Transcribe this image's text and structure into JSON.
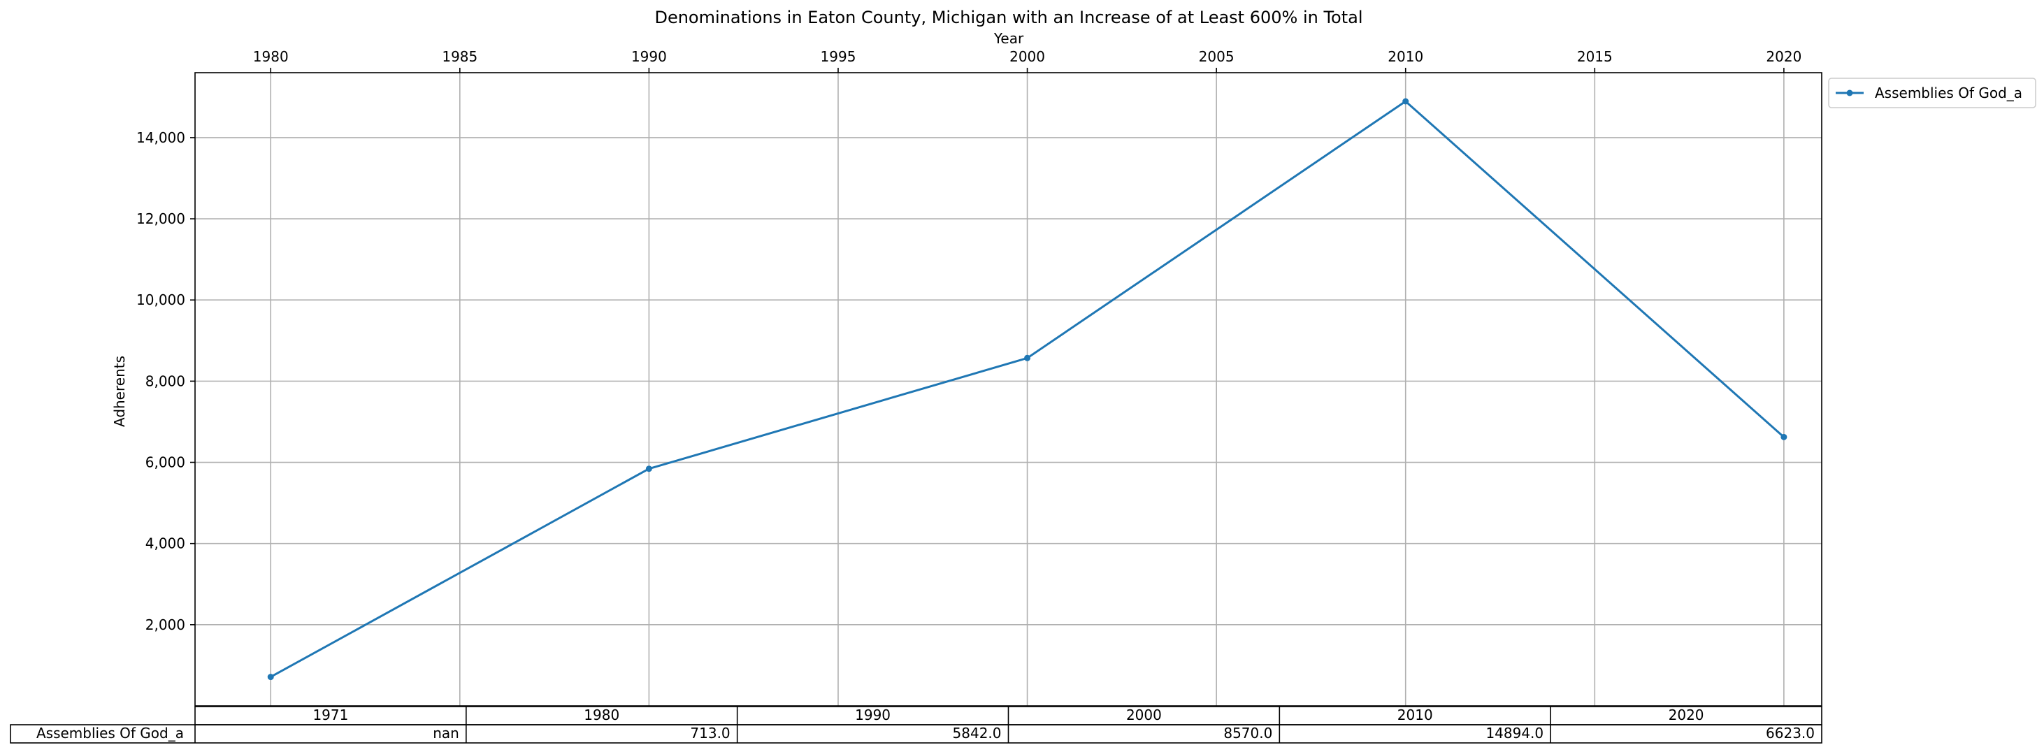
{
  "chart_data": {
    "type": "line",
    "title": "Denominations in Eaton County, Michigan with an Increase of at Least 600% in Total",
    "xlabel": "Year",
    "ylabel": "Adherents",
    "x_axis_position": "top",
    "xlim": [
      1978,
      2021
    ],
    "ylim": [
      0,
      15600
    ],
    "x_ticks": [
      "1980",
      "1985",
      "1990",
      "1995",
      "2000",
      "2005",
      "2010",
      "2015",
      "2020"
    ],
    "y_ticks": [
      "2,000",
      "4,000",
      "6,000",
      "8,000",
      "10,000",
      "12,000",
      "14,000"
    ],
    "grid": true,
    "legend_position": "outside-top-right",
    "series": [
      {
        "name": "Assemblies Of God_a",
        "color": "#1f77b4",
        "x": [
          1980,
          1990,
          2000,
          2010,
          2020
        ],
        "y": [
          713,
          5842,
          8570,
          14894,
          6623
        ]
      }
    ],
    "table": {
      "columns": [
        "1971",
        "1980",
        "1990",
        "2000",
        "2010",
        "2020"
      ],
      "rows": [
        {
          "label": "Assemblies Of God_a",
          "cells": [
            "nan",
            "713.0",
            "5842.0",
            "8570.0",
            "14894.0",
            "6623.0"
          ]
        }
      ]
    }
  }
}
